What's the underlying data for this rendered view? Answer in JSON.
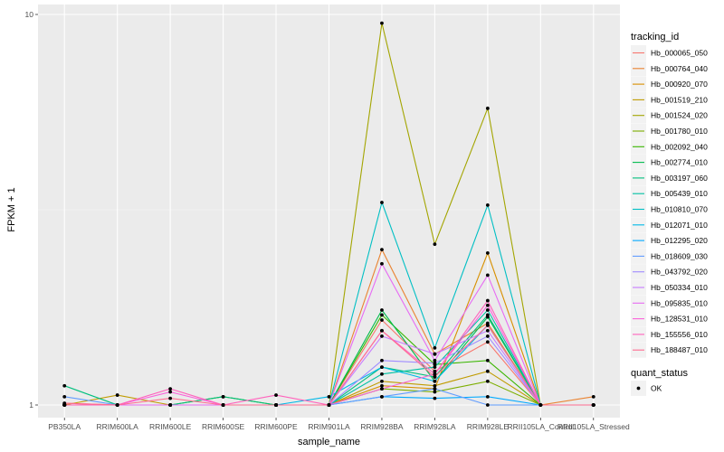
{
  "chart_data": {
    "type": "line",
    "title": "",
    "xlabel": "sample_name",
    "ylabel": "FPKM + 1",
    "y_scale": "log10",
    "ylim": [
      1,
      10
    ],
    "y_ticks": [
      1,
      10
    ],
    "y_tick_labels": [
      "1",
      "10"
    ],
    "grid": true,
    "legend_position": "right",
    "categories": [
      "PB350LA",
      "RRIM600LA",
      "RRIM600LE",
      "RRIM600SE",
      "RRIM600PE",
      "RRIM901LA",
      "RRIM928BA",
      "RRIM928LA",
      "RRIM928LE",
      "RRII105LA_Control",
      "RRII105LA_Stressed"
    ],
    "colour_legend_title": "tracking_id",
    "shape_legend_title": "quant_status",
    "shape_legend_items": [
      "OK"
    ],
    "series": [
      {
        "name": "Hb_000065_050",
        "color": "#F8766D",
        "values": [
          1.01,
          1.0,
          1.0,
          1.0,
          1.0,
          1.0,
          1.65,
          1.22,
          1.45,
          1.0,
          1.0
        ]
      },
      {
        "name": "Hb_000764_040",
        "color": "#EA8331",
        "values": [
          1.0,
          1.0,
          1.0,
          1.0,
          1.0,
          1.0,
          2.5,
          1.35,
          1.62,
          1.0,
          1.05
        ]
      },
      {
        "name": "Hb_000920_070",
        "color": "#D89000",
        "values": [
          1.0,
          1.0,
          1.0,
          1.0,
          1.0,
          1.0,
          1.12,
          1.1,
          2.45,
          1.0,
          1.0
        ]
      },
      {
        "name": "Hb_001519_210",
        "color": "#C09B00",
        "values": [
          1.0,
          1.06,
          1.0,
          1.0,
          1.0,
          1.0,
          1.15,
          1.12,
          1.22,
          1.0,
          1.0
        ]
      },
      {
        "name": "Hb_001524_020",
        "color": "#A3A500",
        "values": [
          1.0,
          1.0,
          1.0,
          1.0,
          1.0,
          1.0,
          9.5,
          2.58,
          5.75,
          1.0,
          1.0
        ]
      },
      {
        "name": "Hb_001780_010",
        "color": "#7CAE00",
        "values": [
          1.0,
          1.0,
          1.0,
          1.0,
          1.0,
          1.0,
          1.1,
          1.08,
          1.15,
          1.0,
          1.0
        ]
      },
      {
        "name": "Hb_002092_040",
        "color": "#39B600",
        "values": [
          1.0,
          1.0,
          1.0,
          1.05,
          1.0,
          1.0,
          1.7,
          1.27,
          1.3,
          1.0,
          1.0
        ]
      },
      {
        "name": "Hb_002774_010",
        "color": "#00BB4E",
        "values": [
          1.0,
          1.0,
          1.0,
          1.0,
          1.0,
          1.0,
          1.75,
          1.15,
          1.68,
          1.0,
          1.0
        ]
      },
      {
        "name": "Hb_003197_060",
        "color": "#00BF7D",
        "values": [
          1.12,
          1.0,
          1.0,
          1.05,
          1.0,
          1.0,
          1.25,
          1.18,
          1.7,
          1.0,
          1.0
        ]
      },
      {
        "name": "Hb_005439_010",
        "color": "#00C1A3",
        "values": [
          1.0,
          1.0,
          1.0,
          1.0,
          1.0,
          1.0,
          1.2,
          1.25,
          1.75,
          1.0,
          1.0
        ]
      },
      {
        "name": "Hb_010810_070",
        "color": "#00BFC4",
        "values": [
          1.0,
          1.0,
          1.0,
          1.0,
          1.0,
          1.0,
          3.3,
          1.4,
          3.25,
          1.0,
          1.0
        ]
      },
      {
        "name": "Hb_012071_010",
        "color": "#00B8E7",
        "values": [
          1.0,
          1.0,
          1.0,
          1.0,
          1.0,
          1.05,
          1.25,
          1.15,
          1.6,
          1.0,
          1.0
        ]
      },
      {
        "name": "Hb_012295_020",
        "color": "#00A9FF",
        "values": [
          1.0,
          1.0,
          1.0,
          1.0,
          1.0,
          1.0,
          1.05,
          1.04,
          1.05,
          1.0,
          1.0
        ]
      },
      {
        "name": "Hb_018609_030",
        "color": "#619CFF",
        "values": [
          1.05,
          1.0,
          1.0,
          1.0,
          1.0,
          1.0,
          1.05,
          1.1,
          1.0,
          1.0,
          1.0
        ]
      },
      {
        "name": "Hb_043792_020",
        "color": "#9F8CFF",
        "values": [
          1.0,
          1.0,
          1.0,
          1.0,
          1.0,
          1.0,
          1.3,
          1.28,
          1.5,
          1.0,
          1.0
        ]
      },
      {
        "name": "Hb_050334_010",
        "color": "#C77CFF",
        "values": [
          1.0,
          1.0,
          1.0,
          1.0,
          1.0,
          1.0,
          1.5,
          1.35,
          1.55,
          1.0,
          1.0
        ]
      },
      {
        "name": "Hb_095835_010",
        "color": "#E76BF3",
        "values": [
          1.0,
          1.0,
          1.0,
          1.0,
          1.0,
          1.0,
          2.3,
          1.3,
          2.15,
          1.0,
          1.0
        ]
      },
      {
        "name": "Hb_128531_010",
        "color": "#FA62DB",
        "values": [
          1.0,
          1.0,
          1.08,
          1.0,
          1.0,
          1.0,
          1.1,
          1.2,
          1.8,
          1.0,
          1.0
        ]
      },
      {
        "name": "Hb_155556_010",
        "color": "#FF62BC",
        "values": [
          1.0,
          1.0,
          1.1,
          1.0,
          1.06,
          1.0,
          1.55,
          1.2,
          1.85,
          1.0,
          1.0
        ]
      },
      {
        "name": "Hb_188487_010",
        "color": "#FF6C91",
        "values": [
          1.01,
          1.0,
          1.04,
          1.0,
          1.0,
          1.0,
          1.55,
          1.18,
          1.6,
          1.0,
          1.0
        ]
      }
    ]
  }
}
